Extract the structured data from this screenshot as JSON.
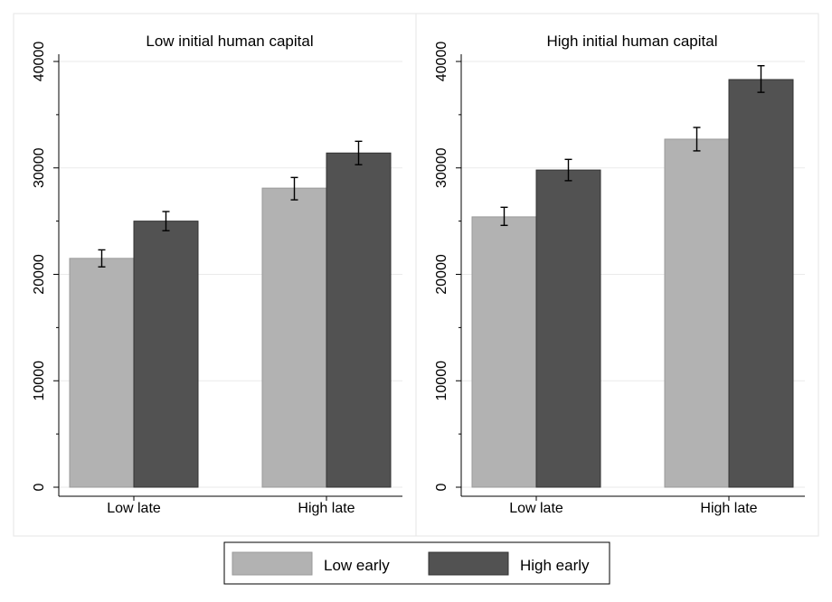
{
  "chart_data": [
    {
      "type": "bar",
      "title": "Low initial human capital",
      "categories": [
        "Low late",
        "High late"
      ],
      "series": [
        {
          "name": "Low early",
          "values": [
            21500,
            28100
          ],
          "error_low": [
            20700,
            27000
          ],
          "error_high": [
            22300,
            29100
          ]
        },
        {
          "name": "High early",
          "values": [
            25000,
            31400
          ],
          "error_low": [
            24100,
            30300
          ],
          "error_high": [
            25900,
            32500
          ]
        }
      ],
      "ylim": [
        0,
        40000
      ],
      "yticks": [
        "0",
        "10000",
        "20000",
        "30000",
        "40000"
      ],
      "grid": true
    },
    {
      "type": "bar",
      "title": "High initial human capital",
      "categories": [
        "Low late",
        "High late"
      ],
      "series": [
        {
          "name": "Low early",
          "values": [
            25400,
            32700
          ],
          "error_low": [
            24600,
            31600
          ],
          "error_high": [
            26300,
            33800
          ]
        },
        {
          "name": "High early",
          "values": [
            29800,
            38300
          ],
          "error_low": [
            28800,
            37100
          ],
          "error_high": [
            30800,
            39600
          ]
        }
      ],
      "ylim": [
        0,
        40000
      ],
      "yticks": [
        "0",
        "10000",
        "20000",
        "30000",
        "40000"
      ],
      "grid": true
    }
  ],
  "legend": {
    "placement": "bottom",
    "items": [
      {
        "label": "Low early",
        "color": "#b2b2b2"
      },
      {
        "label": "High early",
        "color": "#525252"
      }
    ]
  },
  "colors": {
    "low_early": "#b2b2b2",
    "high_early": "#525252",
    "grid": "#eaeaea",
    "frame": "#e6e6e6"
  }
}
